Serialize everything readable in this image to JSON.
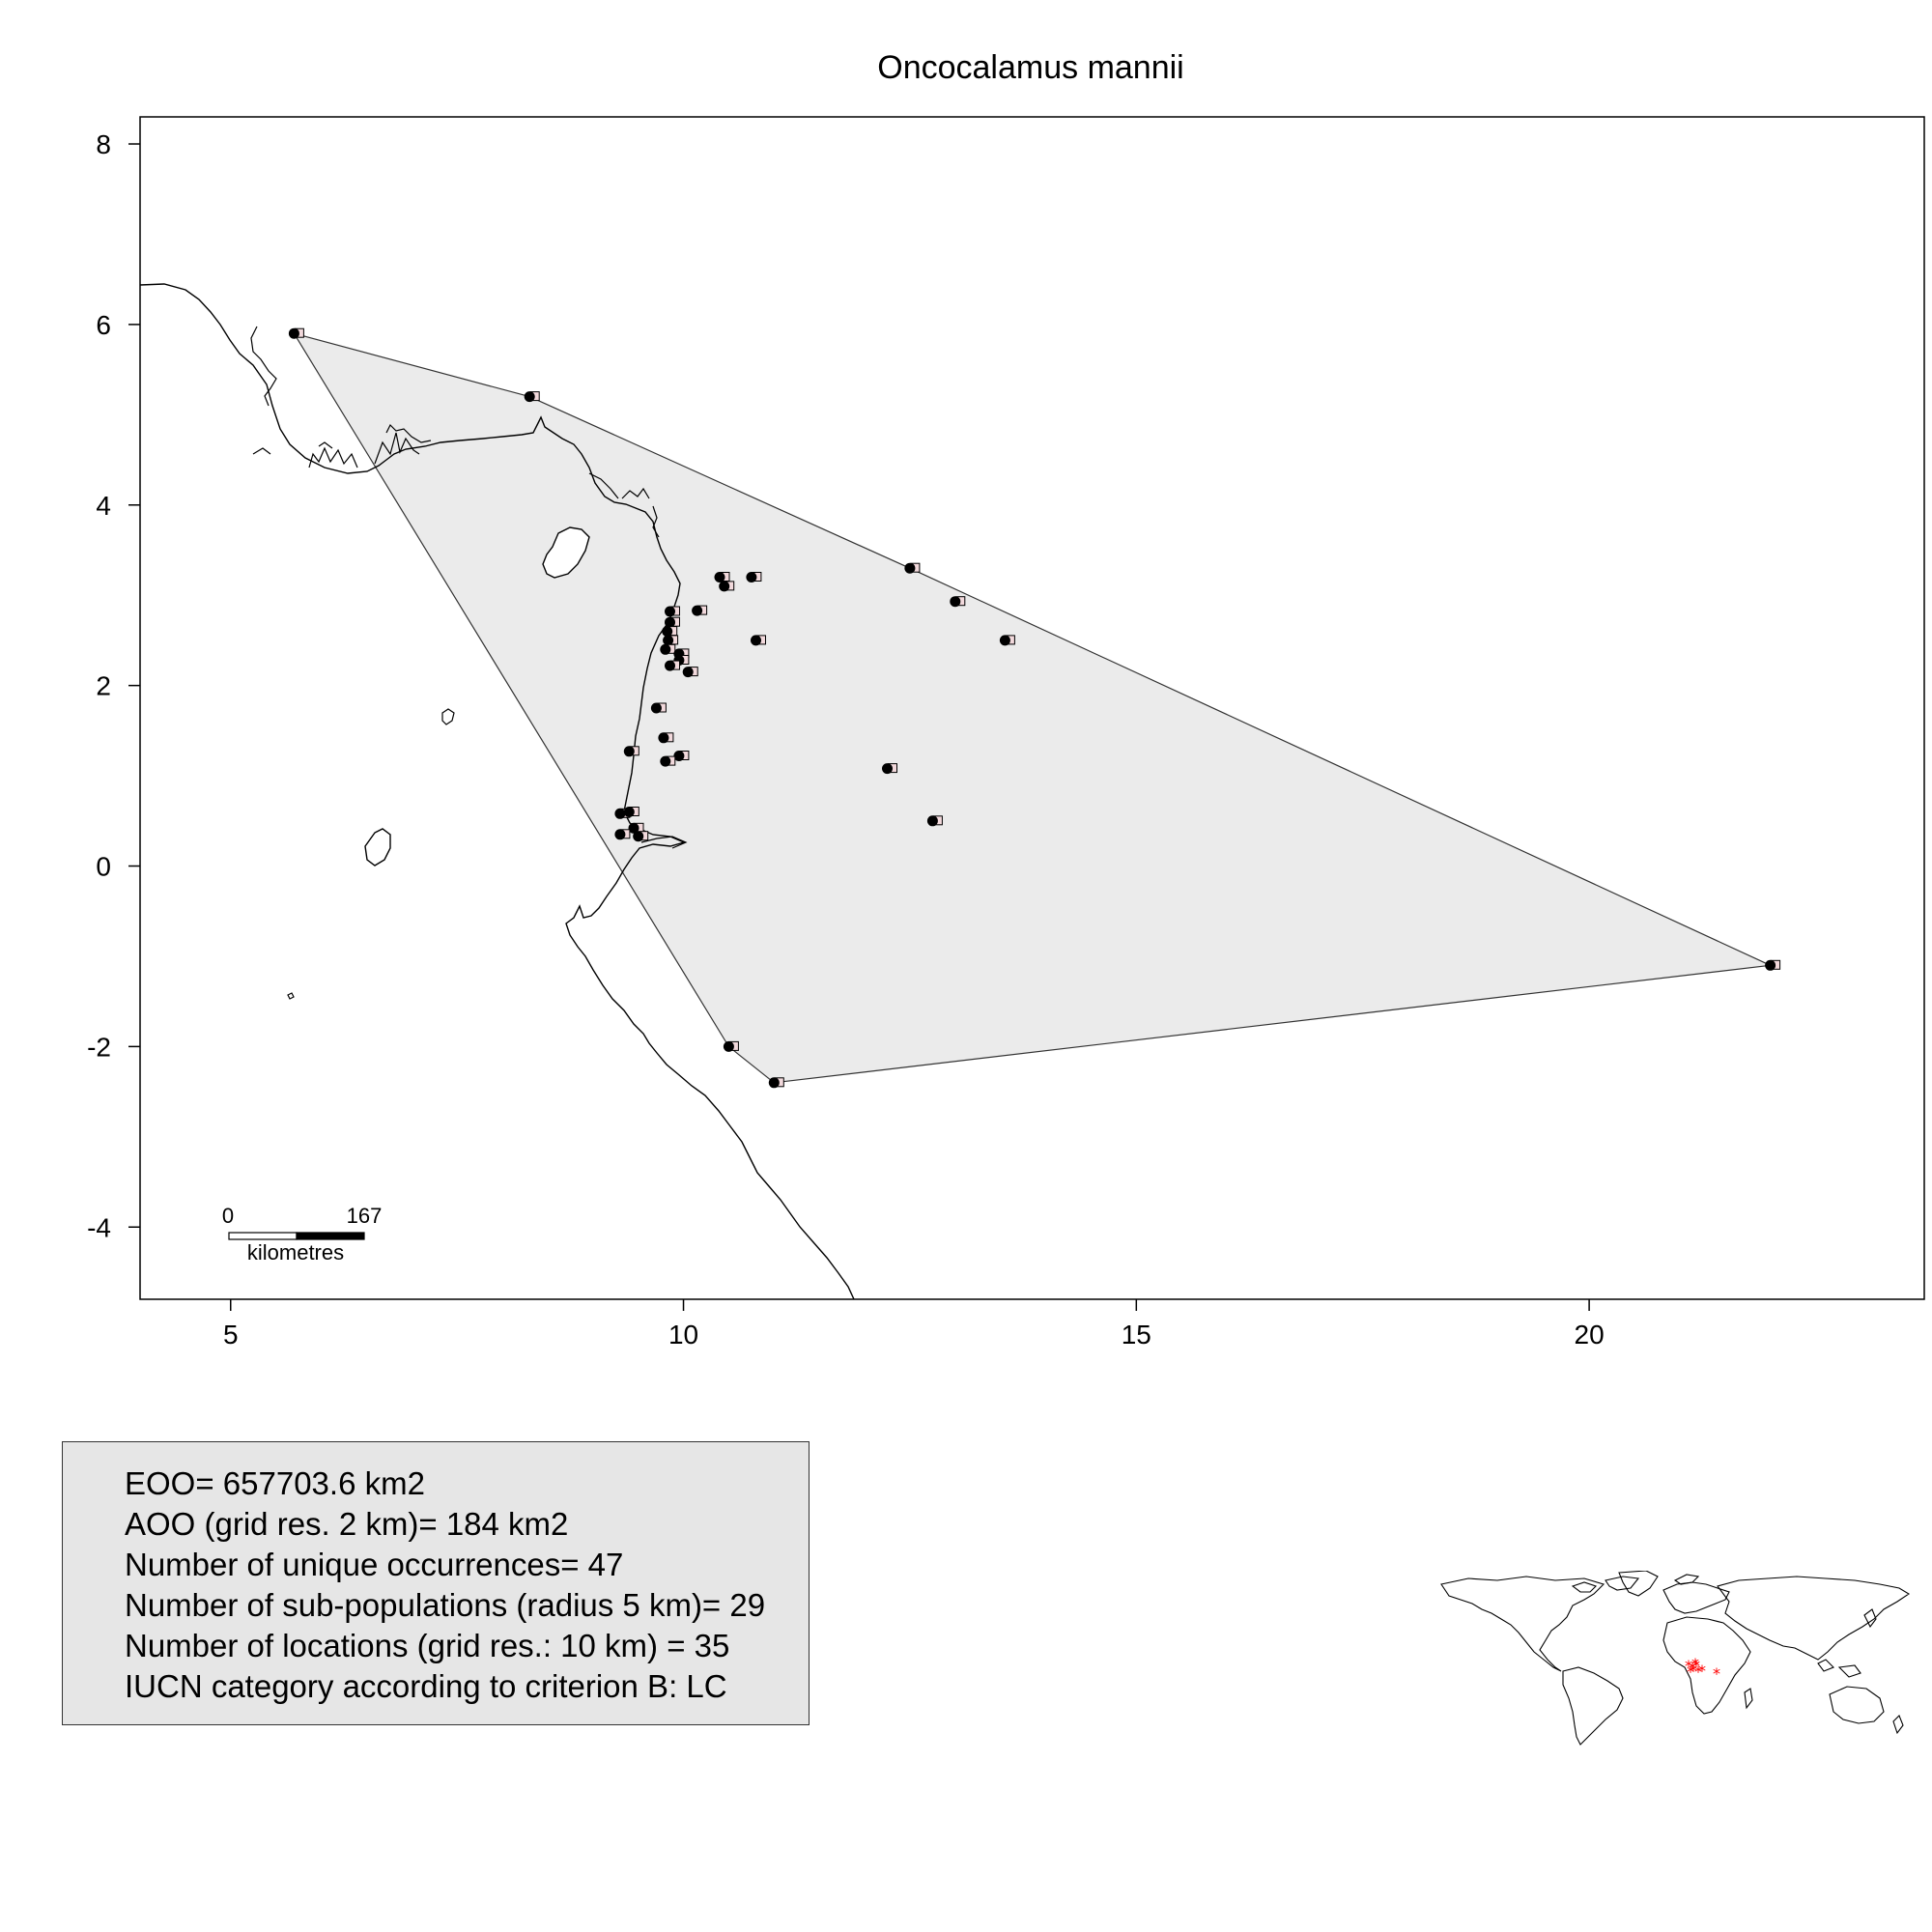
{
  "chart_data": {
    "type": "scatter",
    "title": "Oncocalamus mannii",
    "xlabel": "",
    "ylabel": "",
    "xlim": [
      4,
      23.7
    ],
    "ylim": [
      -4.8,
      8.3
    ],
    "x_ticks": [
      "5",
      "10",
      "15",
      "20"
    ],
    "x_tick_values": [
      5,
      10,
      15,
      20
    ],
    "y_ticks": [
      "8",
      "6",
      "4",
      "2",
      "0",
      "-2",
      "-4"
    ],
    "y_tick_values": [
      8,
      6,
      4,
      2,
      0,
      -2,
      -4
    ],
    "hull": [
      [
        5.7,
        5.9
      ],
      [
        8.3,
        5.2
      ],
      [
        12.5,
        3.3
      ],
      [
        22.0,
        -1.1
      ],
      [
        11.0,
        -2.4
      ],
      [
        10.5,
        -2.0
      ]
    ],
    "points": [
      [
        5.7,
        5.9
      ],
      [
        8.3,
        5.2
      ],
      [
        12.5,
        3.3
      ],
      [
        13.0,
        2.93
      ],
      [
        13.55,
        2.5
      ],
      [
        22.0,
        -1.1
      ],
      [
        11.0,
        -2.4
      ],
      [
        10.5,
        -2.0
      ],
      [
        10.4,
        3.2
      ],
      [
        10.45,
        3.1
      ],
      [
        10.75,
        3.2
      ],
      [
        10.8,
        2.5
      ],
      [
        10.15,
        2.83
      ],
      [
        9.85,
        2.82
      ],
      [
        9.85,
        2.7
      ],
      [
        9.82,
        2.6
      ],
      [
        9.83,
        2.5
      ],
      [
        9.8,
        2.4
      ],
      [
        9.95,
        2.35
      ],
      [
        9.95,
        2.28
      ],
      [
        9.85,
        2.22
      ],
      [
        10.05,
        2.15
      ],
      [
        9.7,
        1.75
      ],
      [
        9.78,
        1.42
      ],
      [
        9.4,
        1.27
      ],
      [
        9.95,
        1.22
      ],
      [
        9.8,
        1.16
      ],
      [
        12.25,
        1.08
      ],
      [
        12.75,
        0.5
      ],
      [
        9.3,
        0.58
      ],
      [
        9.4,
        0.6
      ],
      [
        9.45,
        0.42
      ],
      [
        9.5,
        0.33
      ],
      [
        9.3,
        0.35
      ]
    ],
    "scale_bar": {
      "zero_label": "0",
      "end_label": "167",
      "unit": "kilometres"
    },
    "grid": false
  },
  "stats": {
    "eoo": "EOO= 657703.6 km2",
    "aoo": "AOO (grid res. 2 km)= 184 km2",
    "occurrences": "Number of unique occurrences= 47",
    "subpopulations": "Number of sub-populations (radius 5 km)= 29",
    "locations": "Number of locations (grid res.: 10  km) = 35",
    "iucn": "IUCN category according to criterion B: LC"
  },
  "colors": {
    "hull_fill": "#ebebeb",
    "point": "#000000",
    "inset_points": "#ff0000",
    "stats_box": "#e6e6e6"
  }
}
